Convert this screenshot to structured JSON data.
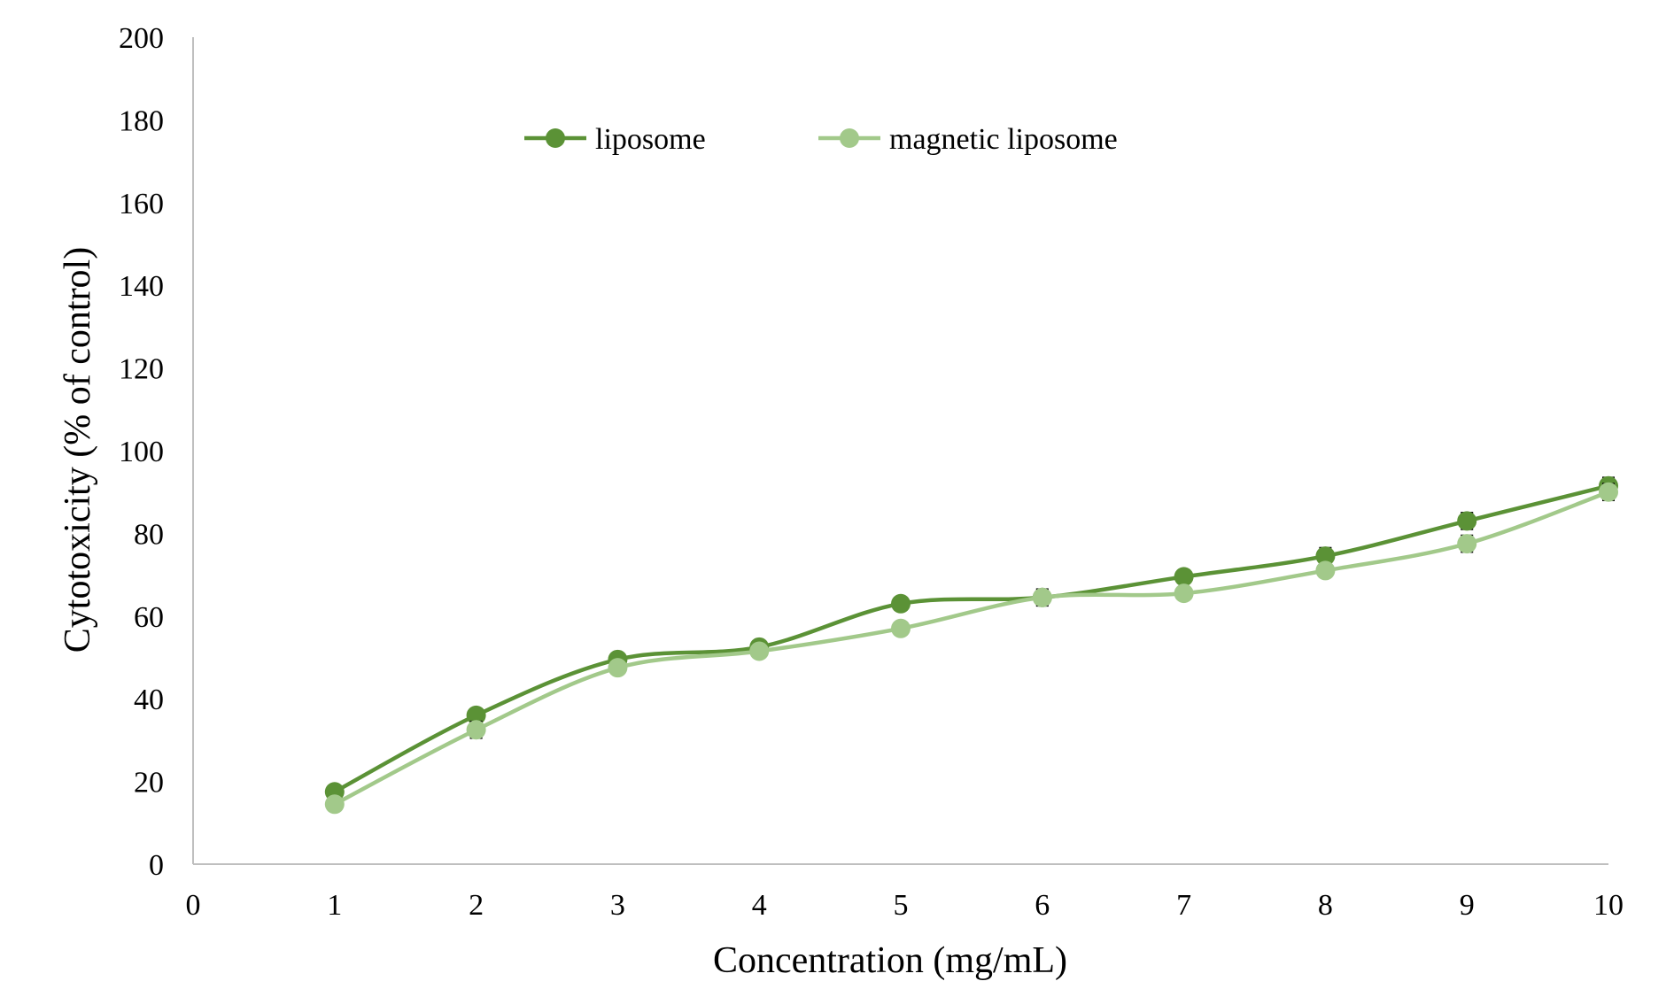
{
  "chart_data": {
    "type": "line",
    "title": "",
    "xlabel": "Concentration (mg/mL)",
    "ylabel": "Cytotoxicity (% of control)",
    "xlim": [
      0,
      10
    ],
    "ylim": [
      0,
      200
    ],
    "x_ticks": [
      0,
      1,
      2,
      3,
      4,
      5,
      6,
      7,
      8,
      9,
      10
    ],
    "y_ticks": [
      0,
      20,
      40,
      60,
      80,
      100,
      120,
      140,
      160,
      180,
      200
    ],
    "grid": false,
    "legend_position": "top-center",
    "x": [
      1,
      2,
      3,
      4,
      5,
      6,
      7,
      8,
      9,
      10
    ],
    "series": [
      {
        "name": "liposome",
        "color": "#5b9236",
        "values": [
          17.5,
          36,
          49.5,
          52.5,
          63,
          64.5,
          69.5,
          74.5,
          83,
          91.5
        ],
        "errors": [
          1,
          1,
          1,
          1,
          1,
          1,
          1,
          2,
          2,
          2
        ]
      },
      {
        "name": "magnetic liposome",
        "color": "#a2c98a",
        "values": [
          14.5,
          32.5,
          47.5,
          51.5,
          57,
          64.5,
          65.5,
          71,
          77.5,
          90
        ],
        "errors": [
          1,
          2,
          1,
          1,
          1,
          2,
          1,
          1,
          2,
          2
        ]
      }
    ]
  }
}
